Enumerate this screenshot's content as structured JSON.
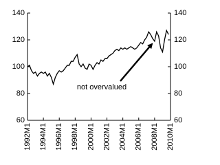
{
  "chart_data": {
    "type": "line",
    "categories": [
      "1992M1",
      null,
      null,
      null,
      null,
      null,
      null,
      null,
      "1994M1",
      null,
      null,
      null,
      null,
      null,
      null,
      null,
      "1996M1",
      null,
      null,
      null,
      null,
      null,
      null,
      null,
      "1998M1",
      null,
      null,
      null,
      null,
      null,
      null,
      null,
      "2000M1",
      null,
      null,
      null,
      null,
      null,
      null,
      null,
      "2002M1",
      null,
      null,
      null,
      null,
      null,
      null,
      null,
      "2004M1",
      null,
      null,
      null,
      null,
      null,
      null,
      null,
      "2006M1",
      null,
      null,
      null,
      null,
      null,
      null,
      null,
      "2008M1",
      null,
      null,
      null,
      null,
      null,
      null,
      null,
      "2010M1"
    ],
    "series": [
      {
        "color": "#000000",
        "values": [
          100,
          101,
          97,
          95,
          96,
          93,
          95,
          96,
          95,
          96,
          93,
          95,
          92,
          87,
          92,
          95,
          97,
          96,
          97,
          99,
          101,
          101,
          104,
          104,
          107,
          109,
          102,
          100,
          102,
          99,
          98,
          102,
          101,
          98,
          101,
          103,
          102,
          105,
          104,
          106,
          106,
          108,
          109,
          110,
          112,
          113,
          112,
          114,
          113,
          114,
          113,
          114,
          115,
          114,
          113,
          114,
          116,
          118,
          117,
          120,
          122,
          126,
          124,
          121,
          119,
          126,
          123,
          114,
          111,
          120,
          127,
          124,
          null
        ]
      }
    ],
    "ylim": [
      60,
      140
    ],
    "yticks": [
      60,
      80,
      100,
      120,
      140
    ],
    "y2lim": [
      60,
      140
    ],
    "y2ticks": [
      60,
      80,
      100,
      120,
      140
    ],
    "annotation": "not overvalued"
  }
}
